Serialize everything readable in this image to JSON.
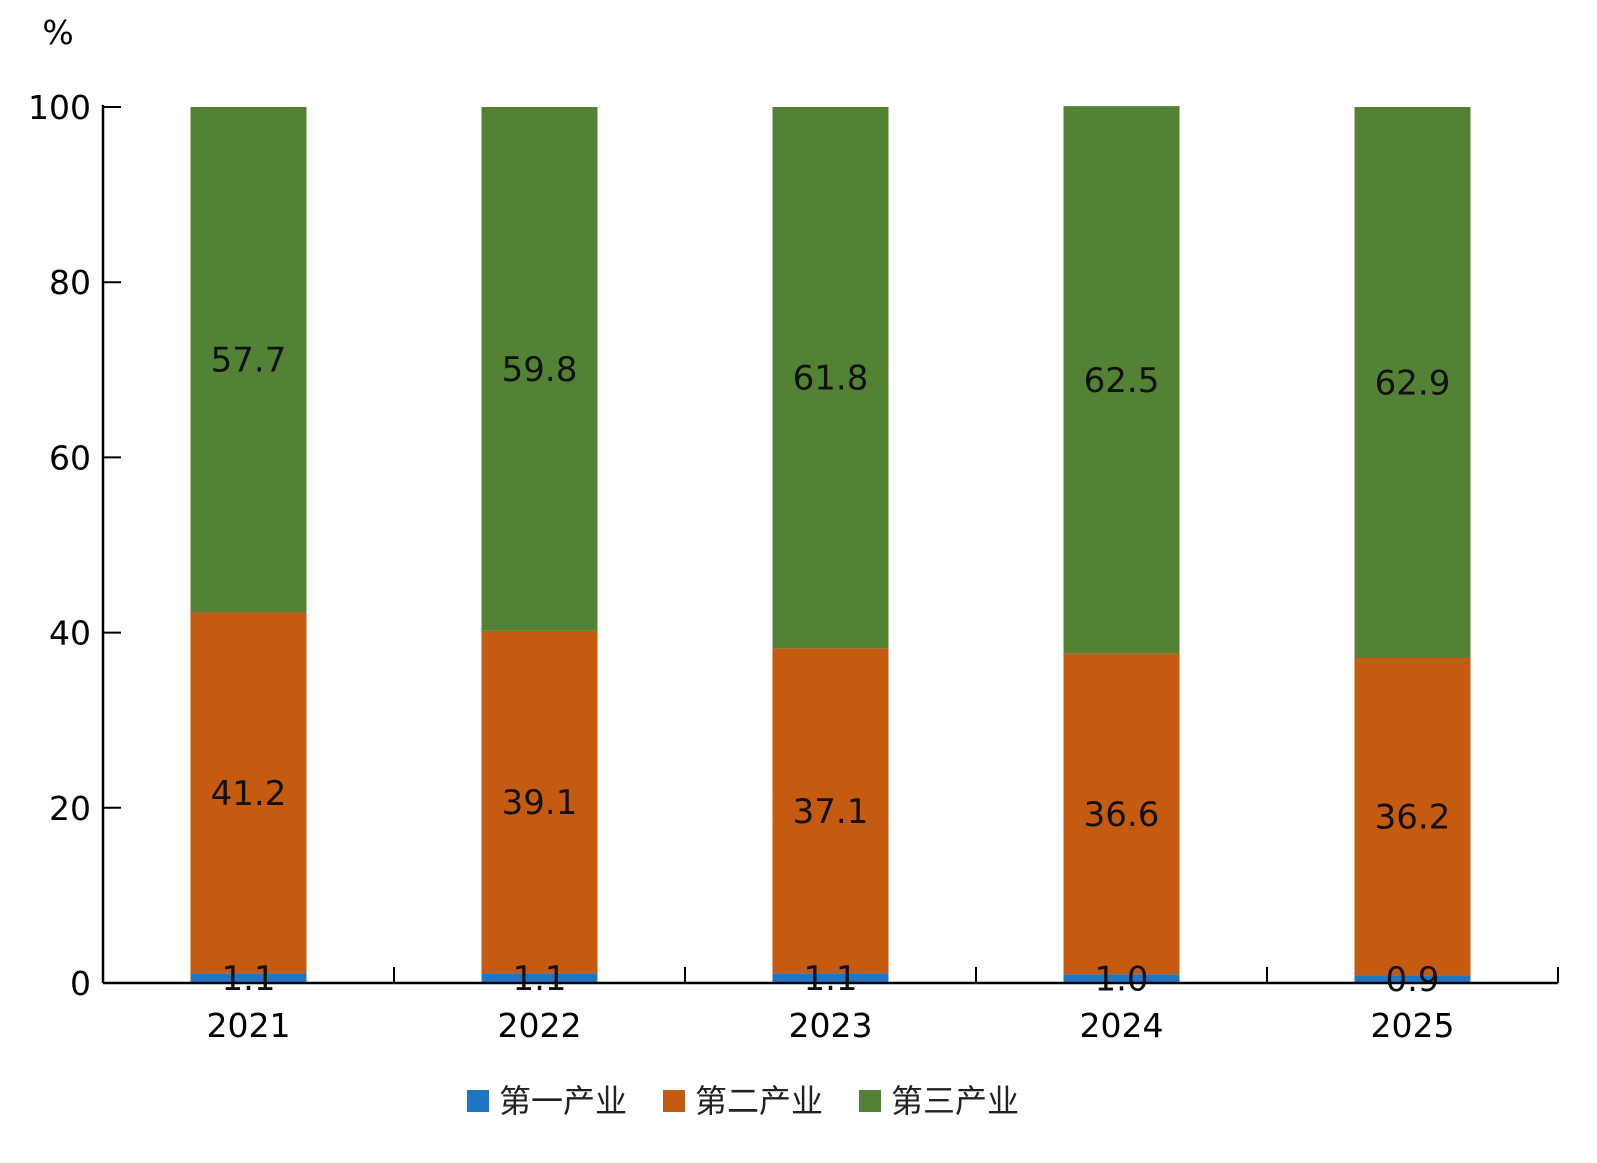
{
  "chart_data": {
    "type": "bar",
    "stacked": true,
    "title": "",
    "xlabel": "",
    "ylabel": "%",
    "ylim": [
      0,
      100
    ],
    "yticks": [
      0,
      20,
      40,
      60,
      80,
      100
    ],
    "categories": [
      "2021",
      "2022",
      "2023",
      "2024",
      "2025"
    ],
    "series": [
      {
        "name": "第一产业",
        "color": "#1f77c4",
        "values": [
          1.1,
          1.1,
          1.1,
          1.0,
          0.9
        ]
      },
      {
        "name": "第二产业",
        "color": "#c55a11",
        "values": [
          41.2,
          39.1,
          37.1,
          36.6,
          36.2
        ]
      },
      {
        "name": "第三产业",
        "color": "#548235",
        "values": [
          57.7,
          59.8,
          61.8,
          62.5,
          62.9
        ]
      }
    ],
    "legend_position": "bottom",
    "grid": false
  }
}
